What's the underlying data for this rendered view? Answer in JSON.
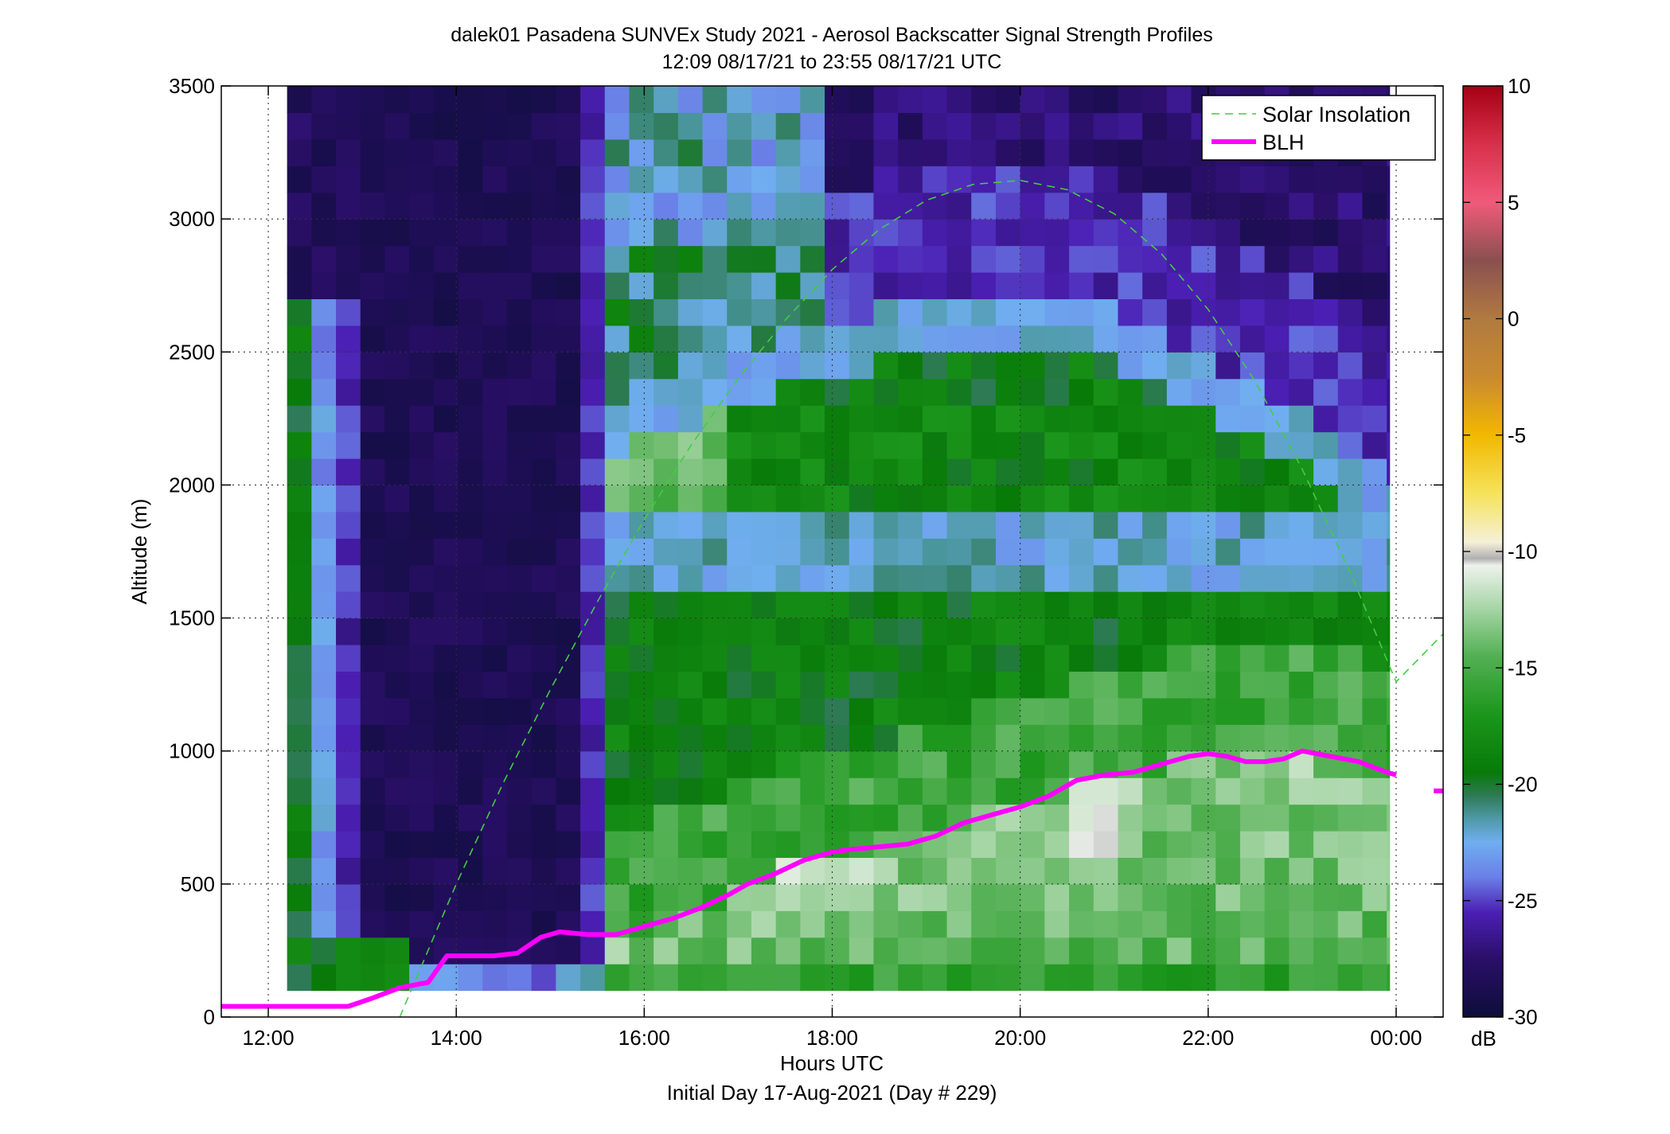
{
  "chart_data": {
    "type": "heatmap",
    "title": "dalek01 Pasadena SUNVEx Study 2021 - Aerosol Backscatter Signal Strength Profiles",
    "subtitle": "12:09 08/17/21 to 23:55 08/17/21  UTC",
    "xlabel": "Hours UTC",
    "xlabel2": "Initial Day 17-Aug-2021 (Day # 229)",
    "ylabel": "Altitude (m)",
    "xlim": [
      11.5,
      24.5
    ],
    "ylim": [
      0,
      3500
    ],
    "x_ticks": [
      12,
      14,
      16,
      18,
      20,
      22,
      24
    ],
    "x_tick_labels": [
      "12:00",
      "14:00",
      "16:00",
      "18:00",
      "20:00",
      "22:00",
      "00:00"
    ],
    "y_ticks": [
      0,
      500,
      1000,
      1500,
      2000,
      2500,
      3000,
      3500
    ],
    "y_tick_labels": [
      "0",
      "500",
      "1000",
      "1500",
      "2000",
      "2500",
      "3000",
      "3500"
    ],
    "grid": true,
    "legend_position": "top-right",
    "colorbar": {
      "label": "dB",
      "range": [
        -30,
        10
      ],
      "ticks": [
        -30,
        -25,
        -20,
        -15,
        -10,
        -5,
        0,
        5,
        10
      ],
      "tick_labels": [
        "-30",
        "-25",
        "-20",
        "-15",
        "-10",
        "-5",
        "0",
        "5",
        "10"
      ],
      "stops": [
        {
          "v": -30,
          "c": "#0d0d3a"
        },
        {
          "v": -27.5,
          "c": "#2a0f68"
        },
        {
          "v": -25.5,
          "c": "#4b1fb4"
        },
        {
          "v": -24,
          "c": "#6a7fe6"
        },
        {
          "v": -22.5,
          "c": "#70aef0"
        },
        {
          "v": -21.5,
          "c": "#4f9aa8"
        },
        {
          "v": -20.5,
          "c": "#2e7a56"
        },
        {
          "v": -19.5,
          "c": "#087a08"
        },
        {
          "v": -17,
          "c": "#1c961c"
        },
        {
          "v": -14.5,
          "c": "#53b053"
        },
        {
          "v": -12.5,
          "c": "#a4d4a4"
        },
        {
          "v": -10.6,
          "c": "#eef2ec"
        },
        {
          "v": -10.3,
          "c": "#b0b0b0"
        },
        {
          "v": -9.6,
          "c": "#f5f0d8"
        },
        {
          "v": -7.5,
          "c": "#f5e35a"
        },
        {
          "v": -5,
          "c": "#f2b800"
        },
        {
          "v": -2.5,
          "c": "#c98a30"
        },
        {
          "v": 0,
          "c": "#b07a40"
        },
        {
          "v": 2.5,
          "c": "#8a5050"
        },
        {
          "v": 5,
          "c": "#f05a7a"
        },
        {
          "v": 7.5,
          "c": "#d8304a"
        },
        {
          "v": 10,
          "c": "#a50015"
        }
      ]
    },
    "heatmap": {
      "x_start": 12.2,
      "x_end": 23.93,
      "bin_hours": 0.26,
      "y_start": 100,
      "y_end": 3500,
      "bin_meters": 100,
      "description_segments": [
        {
          "x0": 12.2,
          "x1": 13.0,
          "profile": "green_purple_bands"
        },
        {
          "x0": 13.0,
          "x1": 15.2,
          "profile": "dark_clear"
        },
        {
          "x0": 15.2,
          "x1": 15.45,
          "profile": "purple_edge"
        },
        {
          "x0": 15.45,
          "x1": 23.93,
          "profile": "aerosol_layers"
        }
      ]
    },
    "series": [
      {
        "name": "Solar Insolation",
        "style": "dashed",
        "color": "#44cc44",
        "x": [
          13.4,
          14.0,
          14.5,
          15.0,
          15.5,
          16.0,
          16.5,
          17.0,
          17.5,
          18.0,
          18.5,
          19.0,
          19.5,
          20.0,
          20.5,
          21.0,
          21.5,
          22.0,
          22.5,
          23.0,
          23.5,
          24.0,
          24.5
        ],
        "y": [
          0,
          500,
          880,
          1230,
          1560,
          1870,
          2150,
          2400,
          2620,
          2810,
          2960,
          3070,
          3130,
          3145,
          3110,
          3020,
          2870,
          2660,
          2390,
          2060,
          1680,
          1260,
          1440
        ]
      },
      {
        "name": "BLH",
        "style": "solid",
        "color": "#ff00ff",
        "x": [
          11.5,
          12.0,
          12.5,
          12.85,
          13.1,
          13.4,
          13.7,
          13.9,
          14.2,
          14.4,
          14.65,
          14.9,
          15.1,
          15.4,
          15.7,
          16.0,
          16.3,
          16.6,
          16.9,
          17.1,
          17.4,
          17.7,
          18.0,
          18.2,
          18.5,
          18.8,
          19.1,
          19.4,
          19.7,
          20.0,
          20.3,
          20.6,
          20.9,
          21.2,
          21.5,
          21.8,
          22.0,
          22.2,
          22.4,
          22.6,
          22.8,
          23.0,
          23.3,
          23.6,
          23.9,
          24.0
        ],
        "y": [
          40,
          40,
          40,
          40,
          70,
          110,
          130,
          230,
          230,
          230,
          240,
          300,
          320,
          310,
          310,
          340,
          370,
          410,
          460,
          500,
          540,
          590,
          620,
          630,
          640,
          650,
          680,
          730,
          760,
          790,
          830,
          890,
          910,
          920,
          950,
          980,
          990,
          980,
          960,
          960,
          970,
          1000,
          980,
          960,
          920,
          910
        ],
        "tail_x": [
          24.4,
          24.5
        ],
        "tail_y": [
          850,
          850
        ]
      }
    ]
  }
}
